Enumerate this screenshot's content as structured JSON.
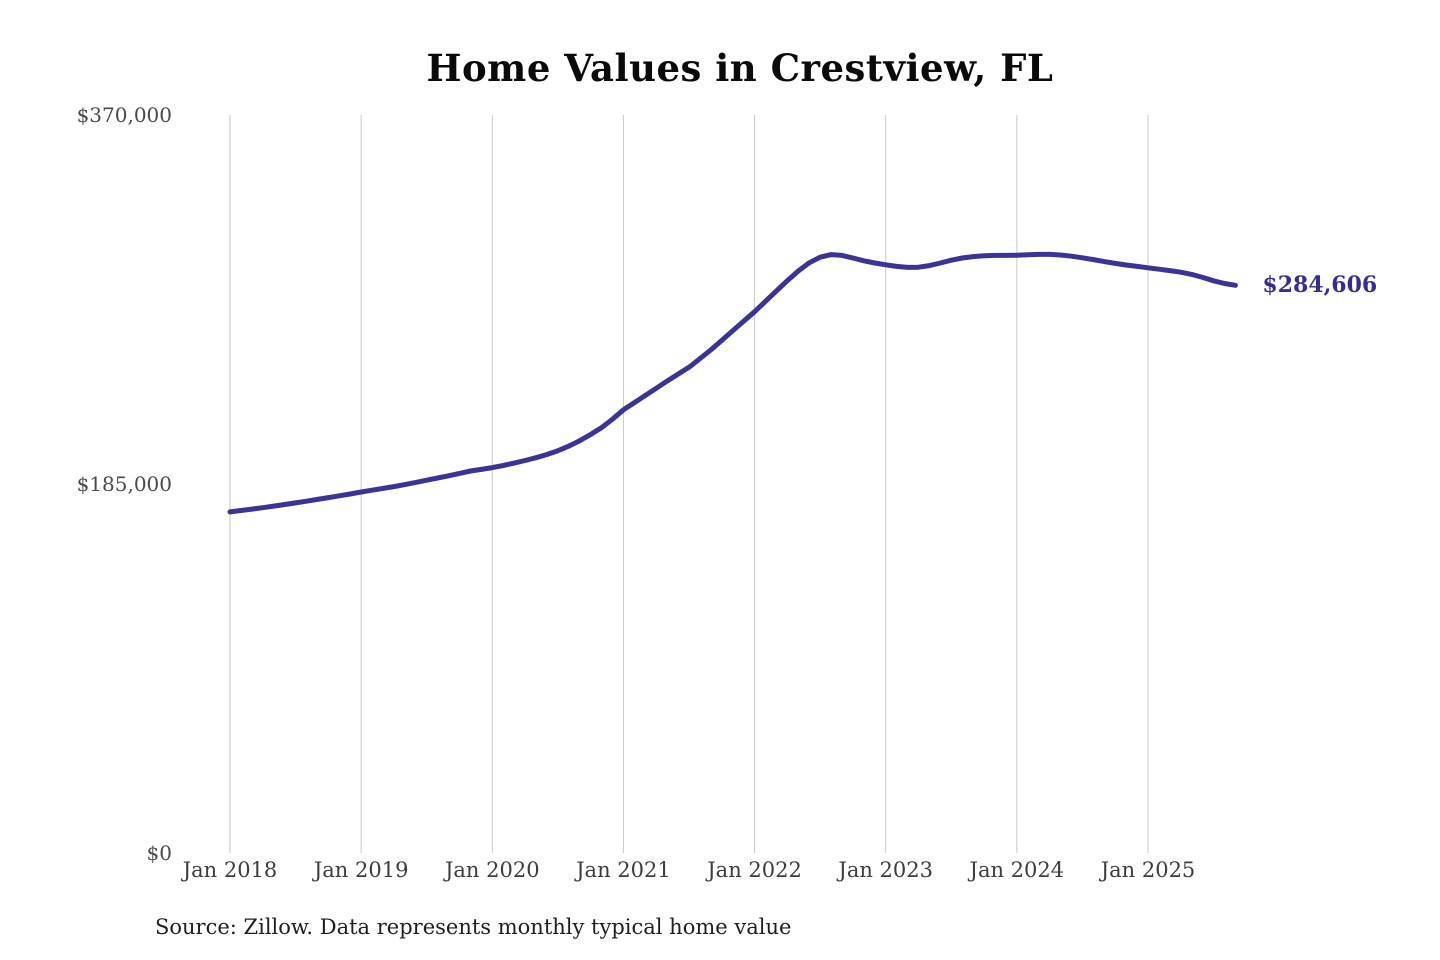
{
  "title": "Home Values in Crestview, FL",
  "source_note": "Source: Zillow. Data represents monthly typical home value",
  "end_label": "$284,606",
  "colors": {
    "line": "#3b3497",
    "end_label": "#352e8e",
    "gridline": "#c9c9c9",
    "y_tick_text": "#4a4a4a",
    "x_tick_text": "#3d3d3d",
    "title_text": "#0a0a0a",
    "source_text": "#1f1f1f",
    "background": "#ffffff"
  },
  "chart_data": {
    "type": "line",
    "title": "Home Values in Crestview, FL",
    "xlabel": "",
    "ylabel": "",
    "ylim": [
      0,
      370000
    ],
    "y_ticks": [
      0,
      185000,
      370000
    ],
    "y_tick_labels": [
      "$0",
      "$185,000",
      "$370,000"
    ],
    "x_tick_labels": [
      "Jan 2018",
      "Jan 2019",
      "Jan 2020",
      "Jan 2021",
      "Jan 2022",
      "Jan 2023",
      "Jan 2024",
      "Jan 2025"
    ],
    "grid": "vertical-only",
    "legend_position": "none",
    "annotation": {
      "text": "$284,606",
      "attached_to": "last-point"
    },
    "series": [
      {
        "name": "Typical home value (monthly)",
        "start_month": "2018-01",
        "end_month": "2025-09",
        "values": [
          171000,
          171700,
          172400,
          173100,
          173900,
          174700,
          175500,
          176400,
          177300,
          178200,
          179100,
          180000,
          181000,
          181900,
          182800,
          183700,
          184700,
          185800,
          186900,
          188000,
          189100,
          190300,
          191500,
          192300,
          193200,
          194300,
          195500,
          196800,
          198200,
          199800,
          201700,
          204000,
          206700,
          209800,
          213300,
          217500,
          222200,
          225800,
          229400,
          233000,
          236600,
          240100,
          243500,
          247800,
          252300,
          257000,
          261800,
          266600,
          271400,
          276600,
          281800,
          287000,
          291800,
          295900,
          298700,
          300000,
          299600,
          298300,
          296900,
          295800,
          294900,
          294100,
          293600,
          293700,
          294500,
          295800,
          297200,
          298300,
          299000,
          299400,
          299600,
          299600,
          299700,
          299900,
          300100,
          300100,
          299800,
          299200,
          298400,
          297500,
          296500,
          295600,
          294800,
          294100,
          293400,
          292700,
          292000,
          291200,
          290100,
          288600,
          286900,
          285500,
          284606
        ]
      }
    ],
    "last_value": 284606
  }
}
